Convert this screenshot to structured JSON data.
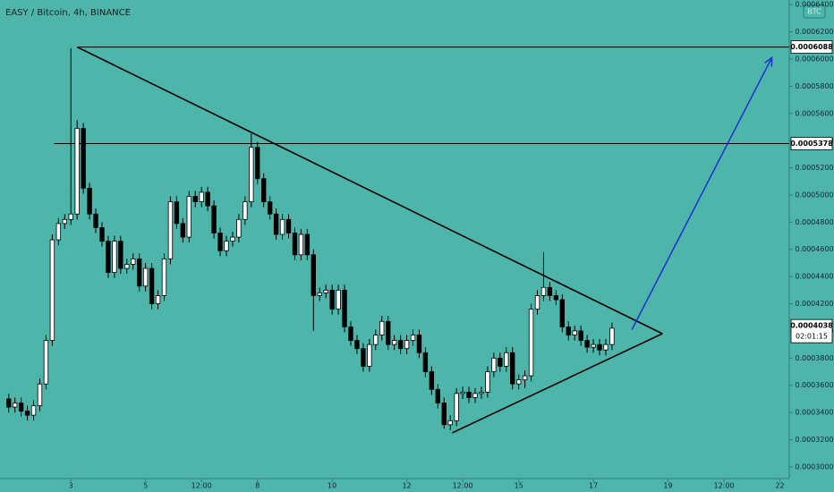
{
  "chart_data": {
    "type": "candlestick",
    "title": "EASY / Bitcoin, 4h, BINANCE",
    "badge": "BTC",
    "countdown": "02:01:15",
    "background": "#4db5a9",
    "up_color": "#ffffff",
    "down_color": "#000000",
    "arrow_color": "#1f2fd6",
    "xlim": [
      -11.4,
      115.5
    ],
    "ylim": [
      0.0002914,
      0.0006434
    ],
    "xticks": [
      {
        "value": 0,
        "label": "3"
      },
      {
        "value": 12,
        "label": "5"
      },
      {
        "value": 21,
        "label": "12:00"
      },
      {
        "value": 30,
        "label": "8"
      },
      {
        "value": 42,
        "label": "10"
      },
      {
        "value": 54,
        "label": "12"
      },
      {
        "value": 63,
        "label": "12:00"
      },
      {
        "value": 72,
        "label": "15"
      },
      {
        "value": 84,
        "label": "17"
      },
      {
        "value": 96,
        "label": "19"
      },
      {
        "value": 105,
        "label": "12:00"
      },
      {
        "value": 114,
        "label": "22"
      }
    ],
    "yticks": [
      {
        "value": 0.0003,
        "label": "0.0003000"
      },
      {
        "value": 0.00032,
        "label": "0.0003200"
      },
      {
        "value": 0.00034,
        "label": "0.0003400"
      },
      {
        "value": 0.00036,
        "label": "0.0003600"
      },
      {
        "value": 0.00038,
        "label": "0.0003800"
      },
      {
        "value": 0.0004,
        "label": "0.0004000"
      },
      {
        "value": 0.00042,
        "label": "0.0004200"
      },
      {
        "value": 0.00044,
        "label": "0.0004400"
      },
      {
        "value": 0.00046,
        "label": "0.0004600"
      },
      {
        "value": 0.00048,
        "label": "0.0004800"
      },
      {
        "value": 0.0005,
        "label": "0.0005000"
      },
      {
        "value": 0.00052,
        "label": "0.0005200"
      },
      {
        "value": 0.00054,
        "label": "0.0005400"
      },
      {
        "value": 0.00056,
        "label": "0.0005600"
      },
      {
        "value": 0.00058,
        "label": "0.0005800"
      },
      {
        "value": 0.0006,
        "label": "0.0006000"
      },
      {
        "value": 0.00062,
        "label": "0.0006200"
      },
      {
        "value": 0.00064,
        "label": "0.0006400"
      }
    ],
    "x": [
      -10,
      -9,
      -8,
      -7,
      -6,
      -5,
      -4,
      -3,
      -2,
      -1,
      0,
      1,
      2,
      3,
      4,
      5,
      6,
      7,
      8,
      9,
      10,
      11,
      12,
      13,
      14,
      15,
      16,
      17,
      18,
      19,
      20,
      21,
      22,
      23,
      24,
      25,
      26,
      27,
      28,
      29,
      30,
      31,
      32,
      33,
      34,
      35,
      36,
      37,
      38,
      39,
      40,
      41,
      42,
      43,
      44,
      45,
      46,
      47,
      48,
      49,
      50,
      51,
      52,
      53,
      54,
      55,
      56,
      57,
      58,
      59,
      60,
      61,
      62,
      63,
      64,
      65,
      66,
      67,
      68,
      69,
      70,
      71,
      72,
      73,
      74,
      75,
      76,
      77,
      78,
      79,
      80,
      81,
      82,
      83,
      84,
      85,
      86,
      87
    ],
    "open": [
      0.00035,
      0.000344,
      0.000347,
      0.000341,
      0.000338,
      0.000345,
      0.000361,
      0.000393,
      0.000467,
      0.000479,
      0.000482,
      0.000486,
      0.000549,
      0.000505,
      0.000486,
      0.000476,
      0.000466,
      0.000443,
      0.000466,
      0.000446,
      0.000449,
      0.000453,
      0.000433,
      0.000446,
      0.00042,
      0.000426,
      0.000453,
      0.000495,
      0.000479,
      0.000469,
      0.000499,
      0.000495,
      0.000502,
      0.000492,
      0.000472,
      0.000459,
      0.000466,
      0.000469,
      0.000482,
      0.000495,
      0.000535,
      0.000512,
      0.000495,
      0.000486,
      0.000471,
      0.000482,
      0.000472,
      0.000456,
      0.000471,
      0.000456,
      0.000426,
      0.000428,
      0.00043,
      0.000416,
      0.00043,
      0.000403,
      0.000393,
      0.000387,
      0.000374,
      0.00039,
      0.000397,
      0.000407,
      0.00039,
      0.000393,
      0.000387,
      0.000393,
      0.000397,
      0.000384,
      0.00037,
      0.000357,
      0.000347,
      0.000331,
      0.000334,
      0.000354,
      0.000355,
      0.000351,
      0.000354,
      0.000355,
      0.00037,
      0.00038,
      0.000374,
      0.000384,
      0.000361,
      0.000364,
      0.000367,
      0.000416,
      0.000426,
      0.000432,
      0.000426,
      0.000423,
      0.000403,
      0.000397,
      0.0004,
      0.000393,
      0.000388,
      0.00039,
      0.000386,
      0.00039
    ],
    "high": [
      0.000354,
      0.000351,
      0.000351,
      0.000345,
      0.000349,
      0.000365,
      0.000397,
      0.000471,
      0.000483,
      0.000486,
      0.000608,
      0.000555,
      0.000553,
      0.000509,
      0.00049,
      0.00048,
      0.00047,
      0.00047,
      0.00047,
      0.000453,
      0.000457,
      0.000457,
      0.00045,
      0.00045,
      0.00043,
      0.000457,
      0.000499,
      0.000499,
      0.000483,
      0.000503,
      0.000503,
      0.000506,
      0.000506,
      0.000496,
      0.000476,
      0.00047,
      0.000473,
      0.000486,
      0.000499,
      0.000545,
      0.000539,
      0.000516,
      0.000499,
      0.00049,
      0.000486,
      0.000486,
      0.000476,
      0.000475,
      0.000475,
      0.00046,
      0.000432,
      0.000434,
      0.000434,
      0.000434,
      0.000434,
      0.000407,
      0.000397,
      0.000391,
      0.000394,
      0.000401,
      0.000411,
      0.000411,
      0.000397,
      0.000397,
      0.000397,
      0.000401,
      0.000401,
      0.000388,
      0.000374,
      0.000361,
      0.000351,
      0.000338,
      0.000358,
      0.000359,
      0.000359,
      0.000358,
      0.000359,
      0.000374,
      0.000384,
      0.000384,
      0.000388,
      0.000388,
      0.000368,
      0.000371,
      0.00042,
      0.00043,
      0.000458,
      0.000436,
      0.00043,
      0.000427,
      0.000407,
      0.000404,
      0.000404,
      0.000397,
      0.000394,
      0.000394,
      0.000394,
      0.000406
    ],
    "low": [
      0.00034,
      0.00034,
      0.000337,
      0.000334,
      0.000334,
      0.000341,
      0.000357,
      0.000389,
      0.000463,
      0.000475,
      0.000478,
      0.000482,
      0.000501,
      0.000482,
      0.000472,
      0.000462,
      0.000439,
      0.000439,
      0.000442,
      0.000442,
      0.000445,
      0.000429,
      0.000429,
      0.000416,
      0.000416,
      0.000422,
      0.000449,
      0.000475,
      0.000465,
      0.000465,
      0.000491,
      0.000491,
      0.000488,
      0.000468,
      0.000455,
      0.000455,
      0.000462,
      0.000465,
      0.000478,
      0.000491,
      0.000508,
      0.000491,
      0.000482,
      0.000467,
      0.000467,
      0.000468,
      0.000452,
      0.000452,
      0.000452,
      0.0004,
      0.000422,
      0.000424,
      0.000412,
      0.000412,
      0.000399,
      0.000389,
      0.000383,
      0.00037,
      0.00037,
      0.000386,
      0.000393,
      0.000386,
      0.000386,
      0.000383,
      0.000383,
      0.000389,
      0.00038,
      0.000366,
      0.000353,
      0.000343,
      0.000328,
      0.000327,
      0.00033,
      0.00035,
      0.000347,
      0.000347,
      0.00035,
      0.000351,
      0.000366,
      0.00037,
      0.00037,
      0.000357,
      0.000357,
      0.000358,
      0.000363,
      0.000412,
      0.000422,
      0.000422,
      0.000419,
      0.000399,
      0.000393,
      0.000393,
      0.000389,
      0.000384,
      0.000384,
      0.000382,
      0.000382,
      0.000386
    ],
    "close": [
      0.000344,
      0.000347,
      0.000341,
      0.000338,
      0.000345,
      0.000361,
      0.000393,
      0.000467,
      0.000479,
      0.000482,
      0.000486,
      0.000549,
      0.000505,
      0.000486,
      0.000476,
      0.000466,
      0.000443,
      0.000466,
      0.000446,
      0.000449,
      0.000453,
      0.000433,
      0.000446,
      0.00042,
      0.000426,
      0.000453,
      0.000495,
      0.000479,
      0.000469,
      0.000499,
      0.000495,
      0.000502,
      0.000492,
      0.000472,
      0.000459,
      0.000466,
      0.000469,
      0.000482,
      0.000495,
      0.000535,
      0.000512,
      0.000495,
      0.000486,
      0.000471,
      0.000482,
      0.000472,
      0.000456,
      0.000471,
      0.000456,
      0.000426,
      0.000428,
      0.00043,
      0.000416,
      0.00043,
      0.000403,
      0.000393,
      0.000387,
      0.000374,
      0.00039,
      0.000397,
      0.000407,
      0.00039,
      0.000393,
      0.000387,
      0.000393,
      0.000397,
      0.000384,
      0.00037,
      0.000357,
      0.000347,
      0.000331,
      0.000334,
      0.000354,
      0.000355,
      0.000351,
      0.000354,
      0.000355,
      0.00037,
      0.00038,
      0.000374,
      0.000384,
      0.000361,
      0.000364,
      0.000367,
      0.000416,
      0.000426,
      0.000432,
      0.000426,
      0.000423,
      0.000403,
      0.000397,
      0.0004,
      0.000393,
      0.000388,
      0.00039,
      0.000386,
      0.00039,
      0.000402
    ],
    "price_lines": [
      {
        "value": 0.0006088,
        "from": 1
      },
      {
        "value": 0.0005378,
        "from": -2.7
      }
    ],
    "last_price": 0.0004038,
    "trendlines": [
      [
        [
          1,
          0.0006088
        ],
        [
          95.1,
          0.000398
        ]
      ],
      [
        [
          61.3,
          0.000325
        ],
        [
          95.1,
          0.000398
        ]
      ]
    ],
    "arrow": [
      [
        90.2,
        0.000401
      ],
      [
        112.7,
        0.000601
      ]
    ]
  }
}
